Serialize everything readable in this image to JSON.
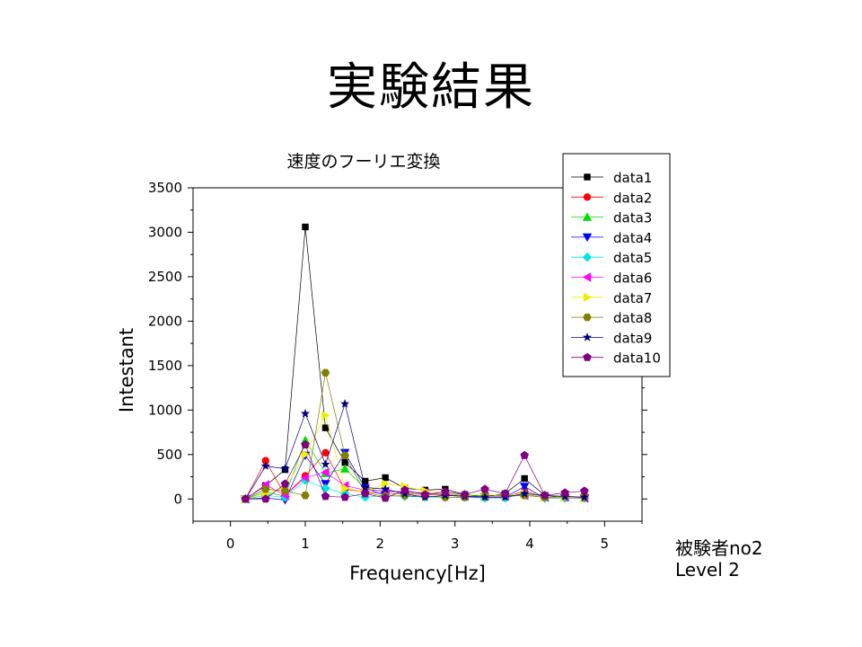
{
  "slide": {
    "title": "実験結果",
    "notes": [
      "被験者no2",
      "Level 2"
    ]
  },
  "chart_data": {
    "type": "line",
    "title": "速度のフーリエ変換",
    "xlabel": "Frequency[Hz]",
    "ylabel": "Intestant",
    "xlim": [
      -0.5,
      5.5
    ],
    "ylim": [
      -250,
      3500
    ],
    "xticks": [
      0,
      1,
      2,
      3,
      4,
      5
    ],
    "yticks": [
      0,
      500,
      1000,
      1500,
      2000,
      2500,
      3000,
      3500
    ],
    "grid": false,
    "legend_position": "top-right",
    "x": [
      0.2,
      0.47,
      0.73,
      1.0,
      1.27,
      1.53,
      1.8,
      2.07,
      2.33,
      2.6,
      2.87,
      3.13,
      3.4,
      3.67,
      3.93,
      4.2,
      4.47,
      4.73
    ],
    "series": [
      {
        "name": "data1",
        "color": "#000000",
        "marker": "square",
        "values": [
          0,
          150,
          330,
          3060,
          800,
          410,
          200,
          240,
          120,
          100,
          110,
          50,
          30,
          60,
          230,
          40,
          20,
          10
        ]
      },
      {
        "name": "data2",
        "color": "#ff0000",
        "marker": "circle",
        "values": [
          0,
          430,
          40,
          260,
          520,
          110,
          80,
          60,
          60,
          50,
          40,
          30,
          20,
          20,
          90,
          20,
          10,
          10
        ]
      },
      {
        "name": "data3",
        "color": "#00dd00",
        "marker": "triangle-up",
        "values": [
          0,
          80,
          30,
          660,
          290,
          340,
          120,
          80,
          80,
          60,
          50,
          40,
          30,
          40,
          60,
          20,
          20,
          10
        ]
      },
      {
        "name": "data4",
        "color": "#0000ff",
        "marker": "triangle-down",
        "values": [
          0,
          10,
          -10,
          490,
          170,
          520,
          120,
          40,
          30,
          30,
          20,
          20,
          20,
          20,
          140,
          10,
          10,
          10
        ]
      },
      {
        "name": "data5",
        "color": "#00e5e5",
        "marker": "diamond",
        "values": [
          0,
          40,
          20,
          210,
          120,
          60,
          20,
          40,
          30,
          20,
          20,
          20,
          10,
          10,
          60,
          10,
          10,
          10
        ]
      },
      {
        "name": "data6",
        "color": "#ff00ff",
        "marker": "triangle-left",
        "values": [
          0,
          160,
          40,
          240,
          300,
          150,
          100,
          90,
          80,
          70,
          50,
          30,
          30,
          30,
          40,
          20,
          20,
          10
        ]
      },
      {
        "name": "data7",
        "color": "#eeee00",
        "marker": "triangle-right",
        "values": [
          0,
          60,
          120,
          500,
          940,
          120,
          80,
          170,
          140,
          90,
          70,
          40,
          50,
          40,
          60,
          20,
          20,
          20
        ]
      },
      {
        "name": "data8",
        "color": "#808000",
        "marker": "hexagon",
        "values": [
          0,
          110,
          90,
          40,
          1420,
          490,
          70,
          30,
          40,
          30,
          20,
          20,
          30,
          40,
          40,
          20,
          30,
          20
        ]
      },
      {
        "name": "data9",
        "color": "#000080",
        "marker": "star",
        "values": [
          0,
          370,
          340,
          960,
          390,
          1070,
          130,
          110,
          60,
          20,
          40,
          30,
          20,
          20,
          60,
          40,
          30,
          20
        ]
      },
      {
        "name": "data10",
        "color": "#800080",
        "marker": "pentagon",
        "values": [
          0,
          0,
          170,
          610,
          30,
          20,
          60,
          10,
          100,
          50,
          80,
          50,
          110,
          60,
          490,
          40,
          70,
          90
        ]
      }
    ]
  }
}
